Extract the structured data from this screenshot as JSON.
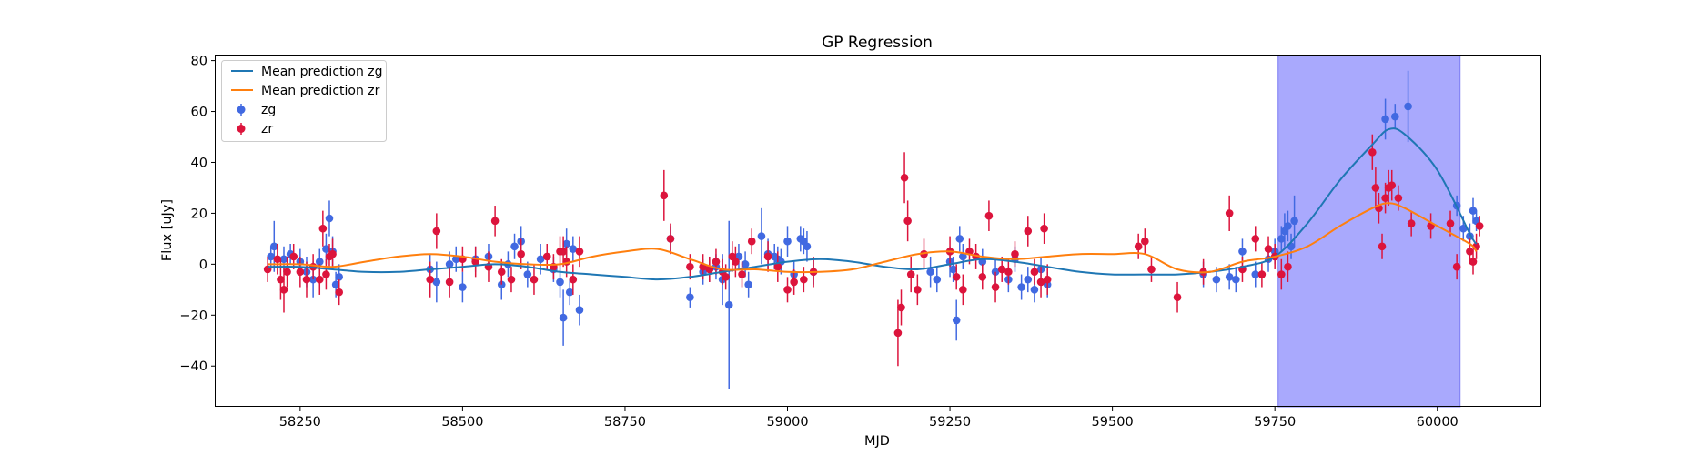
{
  "chart_data": {
    "type": "scatter",
    "title": "GP Regression",
    "xlabel": "MJD",
    "ylabel": "Flux [uJy]",
    "xlim": [
      58120,
      60160
    ],
    "ylim": [
      -56,
      82
    ],
    "xticks": [
      58250,
      58500,
      58750,
      59000,
      59250,
      59500,
      59750,
      60000
    ],
    "yticks": [
      -40,
      -20,
      0,
      20,
      40,
      60,
      80
    ],
    "grid": false,
    "legend_position": "top-left",
    "shaded_region": {
      "x0": 59755,
      "x1": 60035,
      "color": "#a9a9fd"
    },
    "colors": {
      "zg": "#4169e1",
      "zr": "#dc143c",
      "mean_zg": "#1f77b4",
      "mean_zr": "#ff7f0e"
    },
    "series": [
      {
        "name": "Mean prediction zg",
        "kind": "line",
        "x": [
          58200,
          58250,
          58300,
          58350,
          58400,
          58450,
          58500,
          58550,
          58600,
          58650,
          58700,
          58750,
          58800,
          58850,
          58900,
          58950,
          59000,
          59050,
          59100,
          59150,
          59200,
          59250,
          59300,
          59350,
          59400,
          59450,
          59500,
          59550,
          59600,
          59650,
          59700,
          59750,
          59800,
          59850,
          59900,
          59925,
          59950,
          60000,
          60050,
          60060
        ],
        "y": [
          -1,
          -1,
          -2,
          -3,
          -3,
          -2,
          -1,
          0,
          -1,
          -3,
          -4,
          -5,
          -6,
          -5,
          -3,
          -1,
          1,
          2,
          1,
          -1,
          -2,
          0,
          2,
          1,
          -1,
          -3,
          -4,
          -4,
          -4,
          -3,
          -1,
          3,
          16,
          33,
          47,
          53,
          51,
          37,
          12,
          8
        ]
      },
      {
        "name": "Mean prediction zr",
        "kind": "line",
        "x": [
          58200,
          58250,
          58300,
          58350,
          58400,
          58450,
          58500,
          58550,
          58600,
          58650,
          58700,
          58750,
          58800,
          58850,
          58900,
          58950,
          59000,
          59050,
          59100,
          59150,
          59200,
          59250,
          59300,
          59350,
          59400,
          59450,
          59500,
          59550,
          59600,
          59650,
          59700,
          59750,
          59800,
          59850,
          59900,
          59925,
          59950,
          60000,
          60050,
          60060
        ],
        "y": [
          0,
          0,
          -1,
          1,
          3,
          4,
          3,
          1,
          0,
          0,
          3,
          5,
          6,
          2,
          -2,
          -2,
          -3,
          -3,
          -2,
          1,
          4,
          5,
          3,
          2,
          3,
          4,
          4,
          4,
          -2,
          -3,
          1,
          3,
          7,
          15,
          22,
          24,
          22,
          15,
          8,
          5
        ]
      },
      {
        "name": "zg",
        "kind": "errorbar",
        "x": [
          58205,
          58210,
          58225,
          58235,
          58250,
          58260,
          58270,
          58280,
          58290,
          58295,
          58300,
          58305,
          58310,
          58450,
          58460,
          58480,
          58490,
          58500,
          58520,
          58540,
          58560,
          58570,
          58580,
          58590,
          58600,
          58620,
          58640,
          58650,
          58655,
          58660,
          58665,
          58670,
          58680,
          58820,
          58850,
          58870,
          58880,
          58890,
          58900,
          58910,
          58925,
          58935,
          58940,
          58960,
          58970,
          58980,
          58985,
          58990,
          59000,
          59010,
          59020,
          59025,
          59030,
          59040,
          59220,
          59230,
          59250,
          59255,
          59260,
          59265,
          59270,
          59300,
          59320,
          59340,
          59350,
          59360,
          59370,
          59380,
          59390,
          59400,
          59640,
          59660,
          59680,
          59690,
          59700,
          59720,
          59740,
          59750,
          59760,
          59765,
          59770,
          59775,
          59780,
          59920,
          59935,
          59955,
          60030,
          60040,
          60050,
          60055,
          60060
        ],
        "y": [
          3,
          7,
          2,
          4,
          1,
          -3,
          -6,
          1,
          6,
          18,
          5,
          -8,
          -5,
          -2,
          -7,
          0,
          2,
          -9,
          2,
          3,
          -8,
          0,
          7,
          9,
          -4,
          2,
          -2,
          -7,
          -21,
          8,
          -11,
          6,
          -18,
          10,
          -13,
          -3,
          -2,
          -1,
          -6,
          -16,
          3,
          0,
          -8,
          11,
          4,
          3,
          2,
          1,
          9,
          -4,
          10,
          9,
          7,
          -3,
          -3,
          -6,
          1,
          -2,
          -22,
          10,
          3,
          1,
          -3,
          -6,
          2,
          -9,
          -6,
          -10,
          -2,
          -8,
          -4,
          -6,
          -5,
          -6,
          5,
          -4,
          2,
          5,
          10,
          13,
          15,
          7,
          17,
          57,
          58,
          62,
          23,
          14,
          11,
          21,
          17
        ],
        "err": [
          4,
          10,
          5,
          4,
          5,
          6,
          7,
          5,
          6,
          7,
          6,
          5,
          5,
          6,
          8,
          5,
          5,
          6,
          5,
          5,
          6,
          5,
          5,
          6,
          5,
          6,
          5,
          6,
          11,
          6,
          5,
          5,
          6,
          5,
          4,
          5,
          5,
          5,
          10,
          33,
          5,
          5,
          5,
          11,
          6,
          5,
          5,
          5,
          6,
          5,
          5,
          5,
          6,
          5,
          6,
          5,
          6,
          5,
          8,
          5,
          5,
          5,
          5,
          5,
          5,
          5,
          5,
          5,
          5,
          5,
          5,
          5,
          5,
          5,
          5,
          5,
          5,
          5,
          5,
          7,
          6,
          5,
          10,
          8,
          5,
          14,
          4,
          5,
          5,
          5,
          4
        ]
      },
      {
        "name": "zr",
        "kind": "errorbar",
        "x": [
          58200,
          58215,
          58220,
          58225,
          58230,
          58240,
          58250,
          58260,
          58270,
          58280,
          58285,
          58290,
          58295,
          58300,
          58310,
          58450,
          58460,
          58480,
          58500,
          58520,
          58540,
          58550,
          58560,
          58575,
          58590,
          58610,
          58630,
          58640,
          58650,
          58655,
          58660,
          58670,
          58680,
          58810,
          58820,
          58850,
          58870,
          58880,
          58890,
          58900,
          58905,
          58915,
          58920,
          58930,
          58945,
          58970,
          58985,
          59000,
          59010,
          59025,
          59040,
          59170,
          59175,
          59180,
          59185,
          59190,
          59200,
          59210,
          59250,
          59260,
          59270,
          59280,
          59290,
          59300,
          59310,
          59320,
          59330,
          59340,
          59350,
          59370,
          59380,
          59390,
          59395,
          59400,
          59540,
          59550,
          59560,
          59600,
          59640,
          59680,
          59700,
          59720,
          59730,
          59740,
          59750,
          59760,
          59770,
          59900,
          59905,
          59910,
          59915,
          59920,
          59925,
          59930,
          59940,
          59960,
          59990,
          60020,
          60030,
          60050,
          60055,
          60060,
          60065
        ],
        "y": [
          -2,
          2,
          -6,
          -10,
          -3,
          3,
          -3,
          -6,
          -1,
          -6,
          14,
          -4,
          3,
          4,
          -11,
          -6,
          13,
          -7,
          2,
          1,
          -1,
          17,
          -3,
          -6,
          4,
          -6,
          3,
          -1,
          5,
          5,
          1,
          -6,
          5,
          27,
          10,
          -1,
          -1,
          -2,
          1,
          -3,
          -5,
          3,
          1,
          -4,
          9,
          3,
          -1,
          -10,
          -7,
          -6,
          -3,
          -27,
          -17,
          34,
          17,
          -4,
          -10,
          4,
          5,
          -5,
          -10,
          5,
          3,
          -5,
          19,
          -9,
          -2,
          -3,
          4,
          13,
          -3,
          -7,
          14,
          -6,
          7,
          9,
          -2,
          -13,
          -3,
          20,
          -2,
          10,
          -4,
          6,
          3,
          -4,
          -1,
          44,
          30,
          22,
          7,
          26,
          30,
          31,
          26,
          16,
          15,
          16,
          -1,
          5,
          1,
          7,
          15
        ],
        "err": [
          5,
          6,
          8,
          9,
          6,
          5,
          6,
          7,
          5,
          6,
          7,
          6,
          5,
          6,
          5,
          7,
          7,
          6,
          5,
          6,
          6,
          6,
          5,
          5,
          6,
          6,
          5,
          5,
          6,
          6,
          6,
          6,
          6,
          10,
          6,
          5,
          5,
          5,
          5,
          5,
          5,
          6,
          6,
          5,
          5,
          6,
          6,
          5,
          5,
          5,
          6,
          13,
          7,
          10,
          8,
          7,
          6,
          6,
          6,
          5,
          6,
          5,
          5,
          5,
          6,
          6,
          5,
          5,
          5,
          6,
          5,
          6,
          6,
          6,
          5,
          5,
          5,
          6,
          5,
          7,
          5,
          5,
          5,
          5,
          5,
          6,
          6,
          7,
          8,
          6,
          5,
          6,
          7,
          6,
          5,
          5,
          5,
          5,
          5,
          5,
          5,
          5,
          4
        ]
      }
    ]
  }
}
